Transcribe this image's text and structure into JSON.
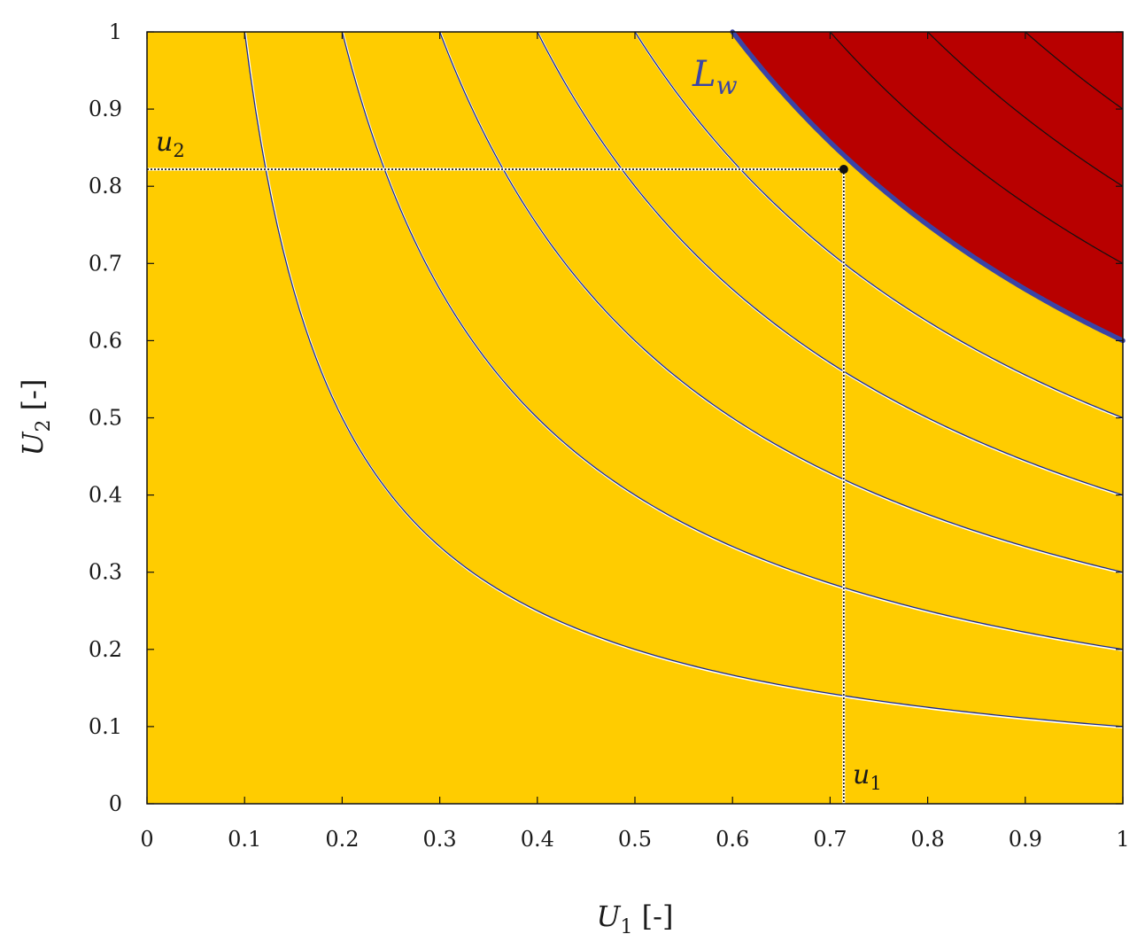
{
  "chart_data": {
    "type": "contour",
    "xlabel": {
      "var": "U",
      "sub": "1",
      "unit": " [-]"
    },
    "ylabel": {
      "var": "U",
      "sub": "2",
      "unit": " [-]"
    },
    "xlim": [
      0,
      1
    ],
    "ylim": [
      0,
      1
    ],
    "x_ticks": [
      "0",
      "0.1",
      "0.2",
      "0.3",
      "0.4",
      "0.5",
      "0.6",
      "0.7",
      "0.8",
      "0.9",
      "1"
    ],
    "y_ticks": [
      "0",
      "0.1",
      "0.2",
      "0.3",
      "0.4",
      "0.5",
      "0.6",
      "0.7",
      "0.8",
      "0.9",
      "1"
    ],
    "grid": false,
    "contour_levels": [
      0.1,
      0.2,
      0.3,
      0.4,
      0.5,
      0.6,
      0.7,
      0.8,
      0.9
    ],
    "boundary_level": 0.6,
    "region_colors": {
      "below": "#ffcc00",
      "above": "#b80000"
    },
    "contour_color_below": "#1c2a8a",
    "contour_color_above": "#111111",
    "boundary_color": "#3a44a6",
    "boundary_label": {
      "var": "L",
      "sub": "w"
    },
    "point": {
      "u1": 0.714,
      "u2": 0.822
    },
    "point_labels": {
      "u1": {
        "var": "u",
        "sub": "1"
      },
      "u2": {
        "var": "u",
        "sub": "2"
      }
    }
  }
}
